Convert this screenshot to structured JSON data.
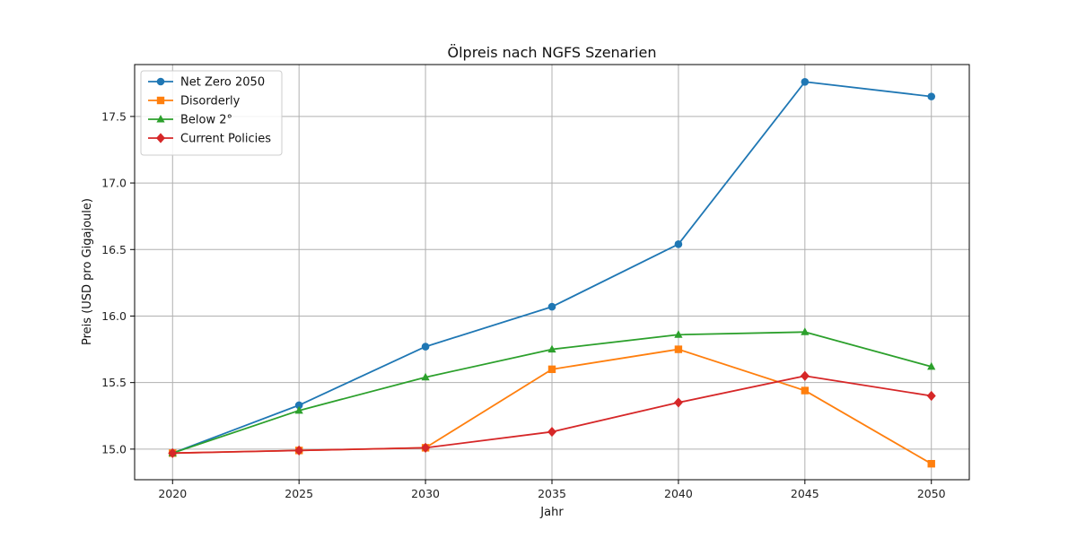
{
  "chart_data": {
    "type": "line",
    "title": "Ölpreis nach NGFS Szenarien",
    "xlabel": "Jahr",
    "ylabel": "Preis (USD pro Gigajoule)",
    "x": [
      2020,
      2025,
      2030,
      2035,
      2040,
      2045,
      2050
    ],
    "xticks": [
      "2020",
      "2025",
      "2030",
      "2035",
      "2040",
      "2045",
      "2050"
    ],
    "yticks": [
      "15.0",
      "15.5",
      "16.0",
      "16.5",
      "17.0",
      "17.5"
    ],
    "ylim": [
      14.77,
      17.89
    ],
    "xlim": [
      2018.5,
      2051.5
    ],
    "grid": true,
    "legend_position": "top-left",
    "series": [
      {
        "name": "Net Zero 2050",
        "color": "#1f77b4",
        "marker": "circle",
        "values": [
          14.97,
          15.33,
          15.77,
          16.07,
          16.54,
          17.76,
          17.65
        ]
      },
      {
        "name": "Disorderly",
        "color": "#ff7f0e",
        "marker": "square",
        "values": [
          14.97,
          14.99,
          15.01,
          15.6,
          15.75,
          15.44,
          14.89
        ]
      },
      {
        "name": "Below 2°",
        "color": "#2ca02c",
        "marker": "triangle",
        "values": [
          14.97,
          15.29,
          15.54,
          15.75,
          15.86,
          15.88,
          15.62
        ]
      },
      {
        "name": "Current Policies",
        "color": "#d62728",
        "marker": "diamond",
        "values": [
          14.97,
          14.99,
          15.01,
          15.13,
          15.35,
          15.55,
          15.4
        ]
      }
    ]
  }
}
